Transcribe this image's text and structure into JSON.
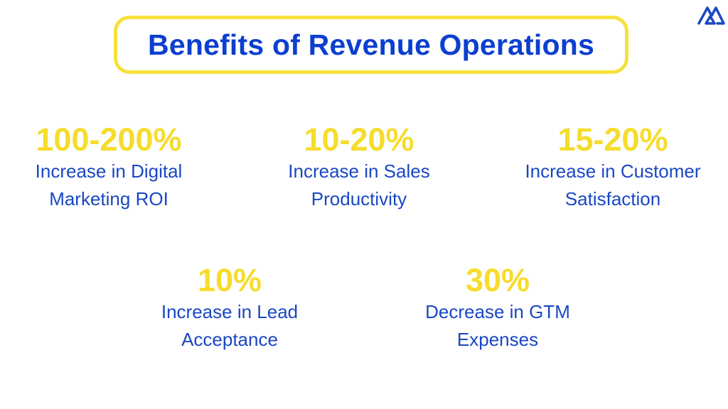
{
  "title": "Benefits of Revenue Operations",
  "logo_icon": "mountain-logo-icon",
  "colors": {
    "title": "#0b3fd0",
    "border": "#f6e13c",
    "stat": "#f6dc2c",
    "label": "#1a47c4"
  },
  "stats": [
    {
      "value": "100-200%",
      "line1": "Increase in Digital",
      "line2": "Marketing ROI"
    },
    {
      "value": "10-20%",
      "line1": "Increase in Sales",
      "line2": "Productivity"
    },
    {
      "value": "15-20%",
      "line1": "Increase in Customer",
      "line2": "Satisfaction"
    },
    {
      "value": "10%",
      "line1": "Increase in Lead",
      "line2": "Acceptance"
    },
    {
      "value": "30%",
      "line1": "Decrease in GTM",
      "line2": "Expenses"
    }
  ]
}
